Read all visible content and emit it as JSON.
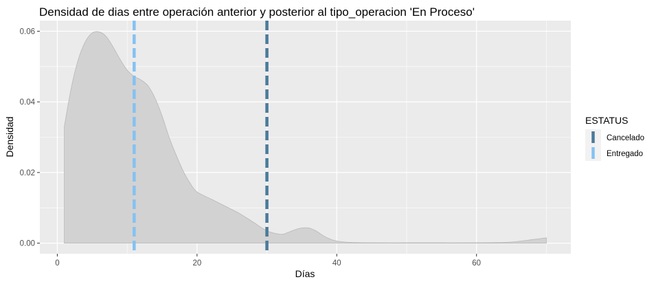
{
  "chart_data": {
    "type": "area",
    "title": "Densidad de dias entre operación anterior y posterior al tipo_operacion 'En Proceso'",
    "xlabel": "Días",
    "ylabel": "Densidad",
    "xlim": [
      -2.5,
      73.5
    ],
    "ylim": [
      -0.003,
      0.063
    ],
    "x_ticks": [
      0,
      20,
      40,
      60
    ],
    "x_tick_labels": [
      "0",
      "20",
      "40",
      "60"
    ],
    "y_ticks": [
      0.0,
      0.02,
      0.04,
      0.06
    ],
    "y_tick_labels": [
      "0.00",
      "0.02",
      "0.04",
      "0.06"
    ],
    "grid": true,
    "fill_color": "#d2d2d2",
    "panel_color": "#ebebeb",
    "density": {
      "x": [
        1,
        2,
        3,
        4,
        5,
        6,
        7,
        8,
        9,
        10,
        11,
        12,
        13,
        14,
        15,
        16,
        17,
        18,
        19,
        20,
        22,
        24,
        26,
        28,
        30,
        32,
        33,
        34,
        35,
        36,
        37,
        38,
        39,
        40,
        42,
        45,
        50,
        55,
        60,
        64,
        66,
        68,
        70
      ],
      "y": [
        0.033,
        0.044,
        0.052,
        0.057,
        0.0595,
        0.0598,
        0.0585,
        0.0555,
        0.052,
        0.049,
        0.0472,
        0.0462,
        0.0445,
        0.041,
        0.036,
        0.03,
        0.025,
        0.0205,
        0.017,
        0.0145,
        0.0125,
        0.0105,
        0.0085,
        0.006,
        0.0035,
        0.0025,
        0.003,
        0.0038,
        0.0043,
        0.0043,
        0.0035,
        0.0022,
        0.0012,
        0.0006,
        0.0002,
        0.0001,
        0.0001,
        0.0001,
        0.0001,
        0.0002,
        0.0005,
        0.001,
        0.0015
      ]
    },
    "vlines": [
      {
        "name": "Cancelado",
        "x": 30,
        "color": "#4a7a9b"
      },
      {
        "name": "Entregado",
        "x": 11,
        "color": "#84c2f2"
      }
    ],
    "legend": {
      "title": "ESTATUS",
      "placement": "right",
      "items": [
        {
          "label": "Cancelado",
          "color": "#4a7a9b"
        },
        {
          "label": "Entregado",
          "color": "#84c2f2"
        }
      ]
    }
  }
}
